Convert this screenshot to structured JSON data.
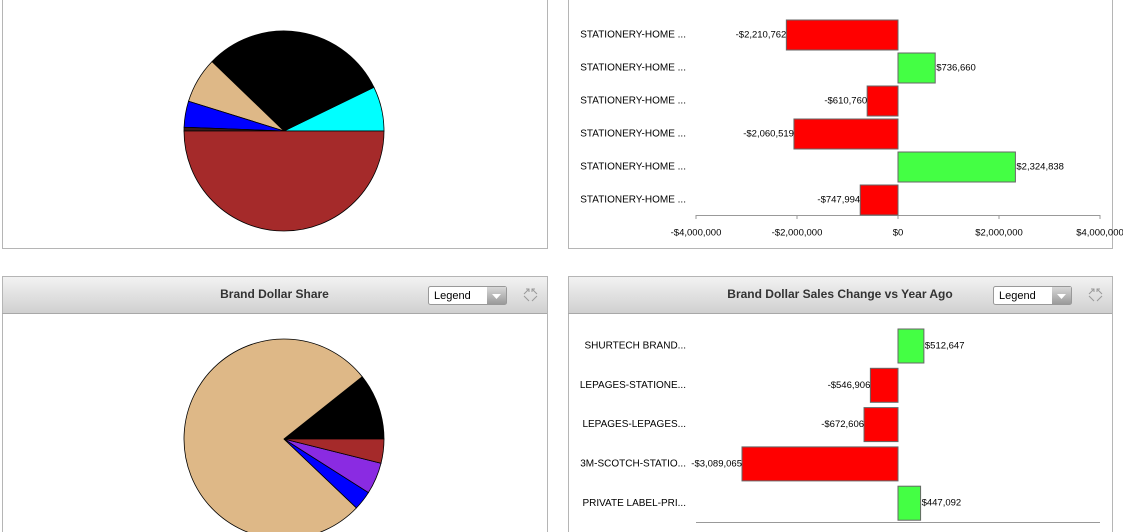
{
  "chart_data": [
    {
      "type": "pie",
      "values": [
        7.2,
        30.6,
        7.4,
        4.2,
        0.6,
        50
      ],
      "colors": [
        "#00ffff",
        "#000000",
        "#deb887",
        "#0000ff",
        "#3a1a1a",
        "#a52a2a"
      ]
    },
    {
      "type": "bar",
      "categories": [
        "STATIONERY-HOME ...",
        "STATIONERY-HOME ...",
        "STATIONERY-HOME ...",
        "STATIONERY-HOME ...",
        "STATIONERY-HOME ...",
        "STATIONERY-HOME ..."
      ],
      "values": [
        -2210762,
        736660,
        -610760,
        -2060519,
        2324838,
        -747994
      ],
      "value_labels": [
        "-$2,210,762",
        "$736,660",
        "-$610,760",
        "-$2,060,519",
        "$2,324,838",
        "-$747,994"
      ],
      "xlim": [
        -4000000,
        4000000
      ],
      "xticks": [
        {
          "value": -4000000,
          "label": "-$4,000,000"
        },
        {
          "value": -2000000,
          "label": "-$2,000,000"
        },
        {
          "value": 0,
          "label": "$0"
        },
        {
          "value": 2000000,
          "label": "$2,000,000"
        },
        {
          "value": 4000000,
          "label": "$4,000,000"
        }
      ],
      "negative_color": "#ff0000",
      "positive_color": "#44ff44"
    },
    {
      "type": "pie",
      "title": "Brand Dollar Share",
      "values": [
        10.7,
        77.2,
        3.1,
        5.1,
        3.9
      ],
      "colors": [
        "#000000",
        "#deb887",
        "#0000ff",
        "#8a2be2",
        "#a52a2a"
      ]
    },
    {
      "type": "bar",
      "title": "Brand Dollar Sales Change vs Year Ago",
      "categories": [
        "SHURTECH BRAND...",
        "LEPAGES-STATIONE...",
        "LEPAGES-LEPAGES...",
        "3M-SCOTCH-STATIO...",
        "PRIVATE LABEL-PRI..."
      ],
      "values": [
        512647,
        -546906,
        -672606,
        -3089065,
        447092
      ],
      "value_labels": [
        "$512,647",
        "-$546,906",
        "-$672,606",
        "-$3,089,065",
        "$447,092"
      ],
      "xlim": [
        -4000000,
        4000000
      ],
      "negative_color": "#ff0000",
      "positive_color": "#44ff44"
    }
  ],
  "dropdowns": [
    "Legend",
    "Legend"
  ]
}
